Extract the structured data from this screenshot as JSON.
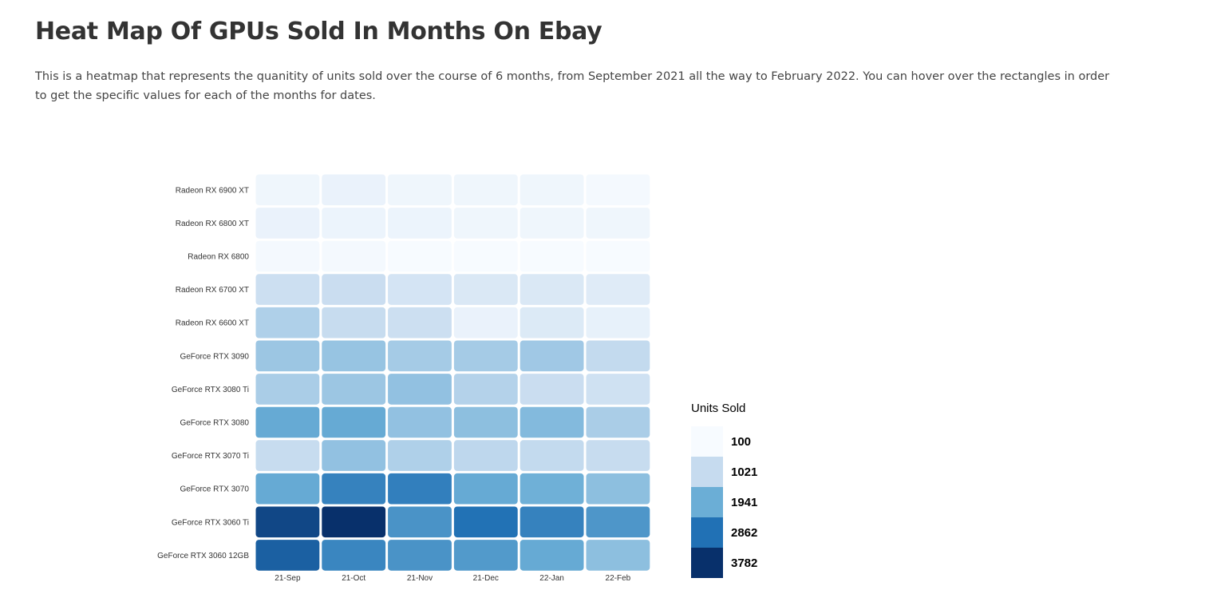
{
  "header": {
    "title": "Heat Map Of GPUs Sold In Months On Ebay",
    "description": "This is a heatmap that represents the quanitity of units sold over the course of 6 months, from September 2021 all the way to February 2022. You can hover over the rectangles in order to get the specific values for each of the months for dates."
  },
  "chart_data": {
    "type": "heatmap",
    "title": "",
    "xlabel": "",
    "ylabel": "",
    "x": [
      "21-Sep",
      "21-Oct",
      "21-Nov",
      "21-Dec",
      "22-Jan",
      "22-Feb"
    ],
    "y": [
      "Radeon RX 6900 XT",
      "Radeon RX 6800 XT",
      "Radeon RX 6800",
      "Radeon RX 6700 XT",
      "Radeon RX 6600 XT",
      "GeForce RTX 3090",
      "GeForce RTX 3080 Ti",
      "GeForce RTX 3080",
      "GeForce RTX 3070 Ti",
      "GeForce RTX 3070",
      "GeForce RTX 3060 Ti",
      "GeForce RTX 3060 12GB"
    ],
    "values": [
      [
        250,
        350,
        250,
        250,
        250,
        150
      ],
      [
        350,
        300,
        300,
        250,
        250,
        250
      ],
      [
        150,
        150,
        100,
        100,
        100,
        100
      ],
      [
        900,
        950,
        750,
        650,
        650,
        550
      ],
      [
        1250,
        1000,
        900,
        350,
        600,
        400
      ],
      [
        1450,
        1500,
        1350,
        1350,
        1400,
        1050
      ],
      [
        1300,
        1450,
        1550,
        1200,
        950,
        850
      ],
      [
        2000,
        2000,
        1550,
        1600,
        1700,
        1300
      ],
      [
        1000,
        1550,
        1250,
        1100,
        1050,
        1000
      ],
      [
        2000,
        2600,
        2650,
        2000,
        1900,
        1600
      ],
      [
        3450,
        3782,
        2350,
        2850,
        2600,
        2300
      ],
      [
        3100,
        2550,
        2350,
        2250,
        2000,
        1600
      ]
    ],
    "color_scale": [
      "#f7fbff",
      "#c6dbef",
      "#6baed6",
      "#2171b5",
      "#08306b"
    ],
    "legend": {
      "title": "Units Sold",
      "labels": [
        "100",
        "1021",
        "1941",
        "2862",
        "3782"
      ],
      "placement": "bottom-right"
    },
    "range": [
      100,
      3782
    ]
  }
}
